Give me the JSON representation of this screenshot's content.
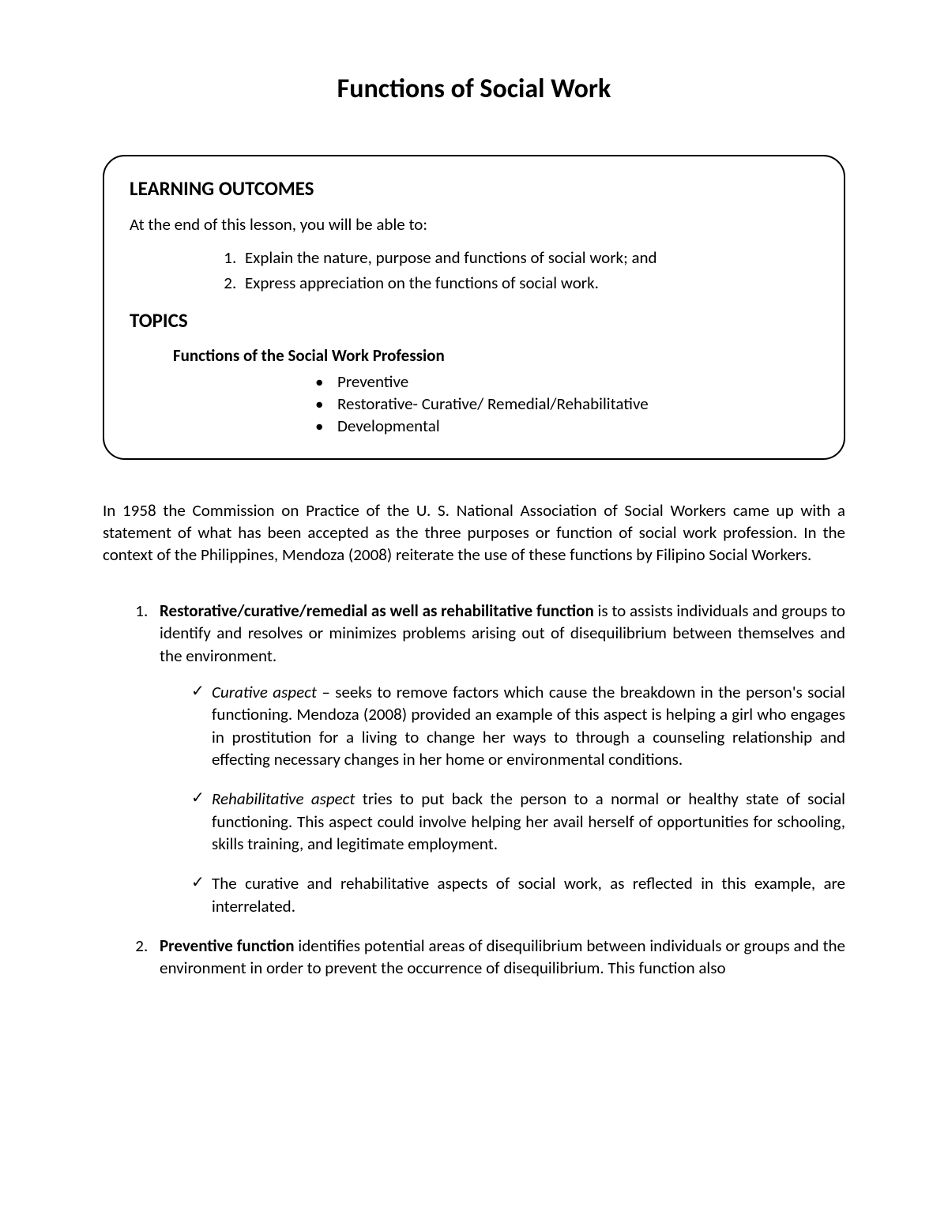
{
  "colors": {
    "text": "#000000",
    "background": "#ffffff",
    "box_border": "#000000"
  },
  "typography": {
    "family": "Calibri",
    "title_size_pt": 26,
    "heading_size_pt": 19,
    "body_size_pt": 16
  },
  "title": "Functions of Social Work",
  "outcomes": {
    "heading": "LEARNING OUTCOMES",
    "intro": "At the end of this lesson, you will be able to:",
    "items": [
      "Explain the nature, purpose and functions of social work; and",
      "Express appreciation on the functions of social work."
    ]
  },
  "topics": {
    "heading": "TOPICS",
    "subheading": "Functions of the Social Work Profession",
    "bullets": [
      "Preventive",
      "Restorative- Curative/ Remedial/Rehabilitative",
      "Developmental"
    ]
  },
  "intro_paragraph": "In 1958 the Commission on Practice of the U. S. National Association of Social Workers came up with a statement of what has been accepted as the three purposes or function of social work profession. In the context of the Philippines, Mendoza (2008) reiterate the use of these functions by Filipino Social Workers.",
  "functions": [
    {
      "lead_bold": "Restorative/curative/remedial as well as rehabilitative function",
      "lead_rest": " is to assists individuals and groups to identify and resolves or minimizes problems arising out of disequilibrium between themselves and the environment.",
      "subs": [
        {
          "emph": "Curative aspect",
          "text": " – seeks to remove factors which cause the breakdown in the person's social functioning. Mendoza (2008) provided an example of this aspect is helping a girl who engages in prostitution for a living to change her ways to through a counseling relationship and effecting necessary changes in her home or environmental conditions."
        },
        {
          "emph": "Rehabilitative aspect",
          "text": " tries to put back the person to a normal or healthy state of social functioning. This aspect could involve helping her avail herself of opportunities for schooling, skills training, and legitimate employment."
        },
        {
          "emph": "",
          "text": "The curative and rehabilitative aspects of social work, as reflected in this example, are interrelated."
        }
      ]
    },
    {
      "lead_bold": "Preventive function",
      "lead_rest": " identifies potential areas of disequilibrium between individuals or groups and the environment in order to prevent the occurrence of disequilibrium. This function also",
      "subs": []
    }
  ]
}
